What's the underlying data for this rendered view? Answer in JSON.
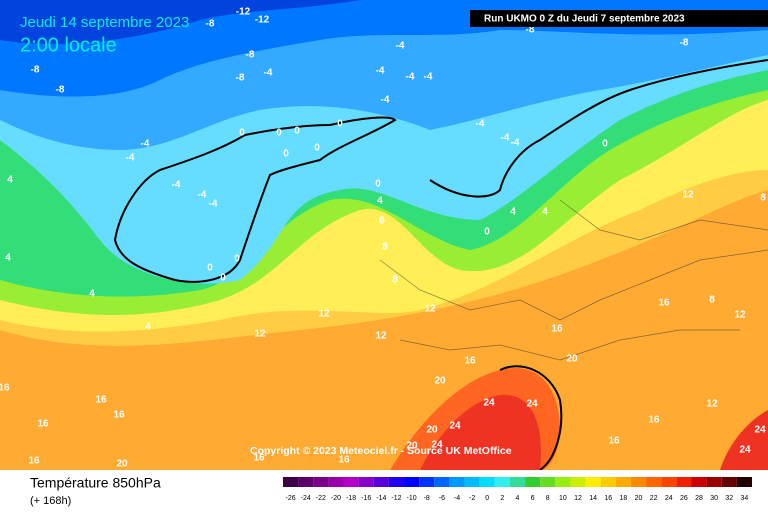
{
  "header": {
    "date": "Jeudi 14 septembre 2023",
    "time": "2:00 locale",
    "run": "Run UKMO 0 Z du Jeudi 7 septembre 2023"
  },
  "copyright": "Copyright © 2023 Meteociel.fr - Source UK MetOffice",
  "footer": {
    "title": "Température 850hPa",
    "lead": "(+ 168h)"
  },
  "legend": {
    "ticks": [
      -26,
      -24,
      -22,
      -20,
      -18,
      -16,
      -14,
      -12,
      -10,
      -8,
      -6,
      -4,
      -2,
      0,
      2,
      4,
      6,
      8,
      10,
      12,
      14,
      16,
      18,
      20,
      22,
      24,
      26,
      28,
      30,
      32,
      34
    ],
    "colors": [
      "#3d0044",
      "#5a0066",
      "#7a0088",
      "#9a00aa",
      "#b400c8",
      "#8800cc",
      "#5500dd",
      "#2200ee",
      "#0000ff",
      "#0033ff",
      "#0066ff",
      "#0099ff",
      "#00bbff",
      "#00ddff",
      "#33eeee",
      "#33dd99",
      "#33cc33",
      "#66dd22",
      "#99ee11",
      "#ccee00",
      "#ffee00",
      "#ffcc00",
      "#ffaa00",
      "#ff8800",
      "#ff6600",
      "#ff4400",
      "#ee2200",
      "#cc0000",
      "#990000",
      "#660000",
      "#220000"
    ]
  },
  "map": {
    "labels": [
      -12,
      -12,
      -8,
      -8,
      -8,
      -8,
      -8,
      -4,
      -4,
      -4,
      -4,
      -4,
      -4,
      -4,
      -4,
      -4,
      -4,
      -4,
      -4,
      -4,
      -4,
      0,
      0,
      0,
      0,
      0,
      0,
      0,
      0,
      0,
      0,
      0,
      0,
      -8,
      -8,
      4,
      4,
      4,
      4,
      4,
      4,
      4,
      8,
      8,
      8,
      8,
      8,
      12,
      12,
      12,
      12,
      12,
      12,
      12,
      16,
      16,
      16,
      16,
      16,
      16,
      16,
      16,
      16,
      16,
      16,
      16,
      20,
      20,
      20,
      20,
      20,
      24,
      24,
      24,
      24,
      24,
      24
    ]
  }
}
